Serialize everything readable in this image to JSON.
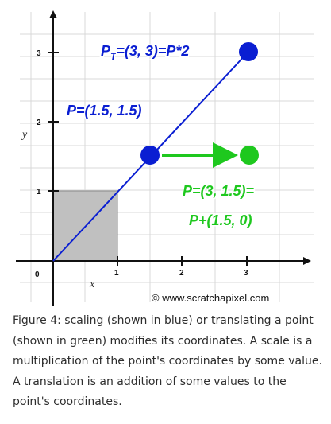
{
  "diagram": {
    "x_axis_label": "x",
    "y_axis_label": "y",
    "x_ticks": [
      "0",
      "1",
      "2",
      "3"
    ],
    "y_ticks": [
      "1",
      "2",
      "3"
    ],
    "scaled_label": {
      "main": "P",
      "sub": "T",
      "rest": "=(3, 3)=P*2"
    },
    "original_label": "P=(1.5, 1.5)",
    "translated_label_line1": "P=(3, 1.5)=",
    "translated_label_line2": "P+(1.5, 0)",
    "copyright": "© www.scratchapixel.com",
    "colors": {
      "blue": "#0a1ed2",
      "green": "#1ec81e",
      "square_fill": "#c0c0c0",
      "grid": "#d8d8d8"
    },
    "points": {
      "original": [
        1.5,
        1.5
      ],
      "scaled": [
        3,
        3
      ],
      "translated": [
        3,
        1.5
      ]
    }
  },
  "caption": "Figure 4: scaling (shown in blue) or translating a point (shown in green) modifies its coordinates. A scale is a multiplication of the point's coordinates by some value. A translation is an addition of some values to the point's coordinates."
}
